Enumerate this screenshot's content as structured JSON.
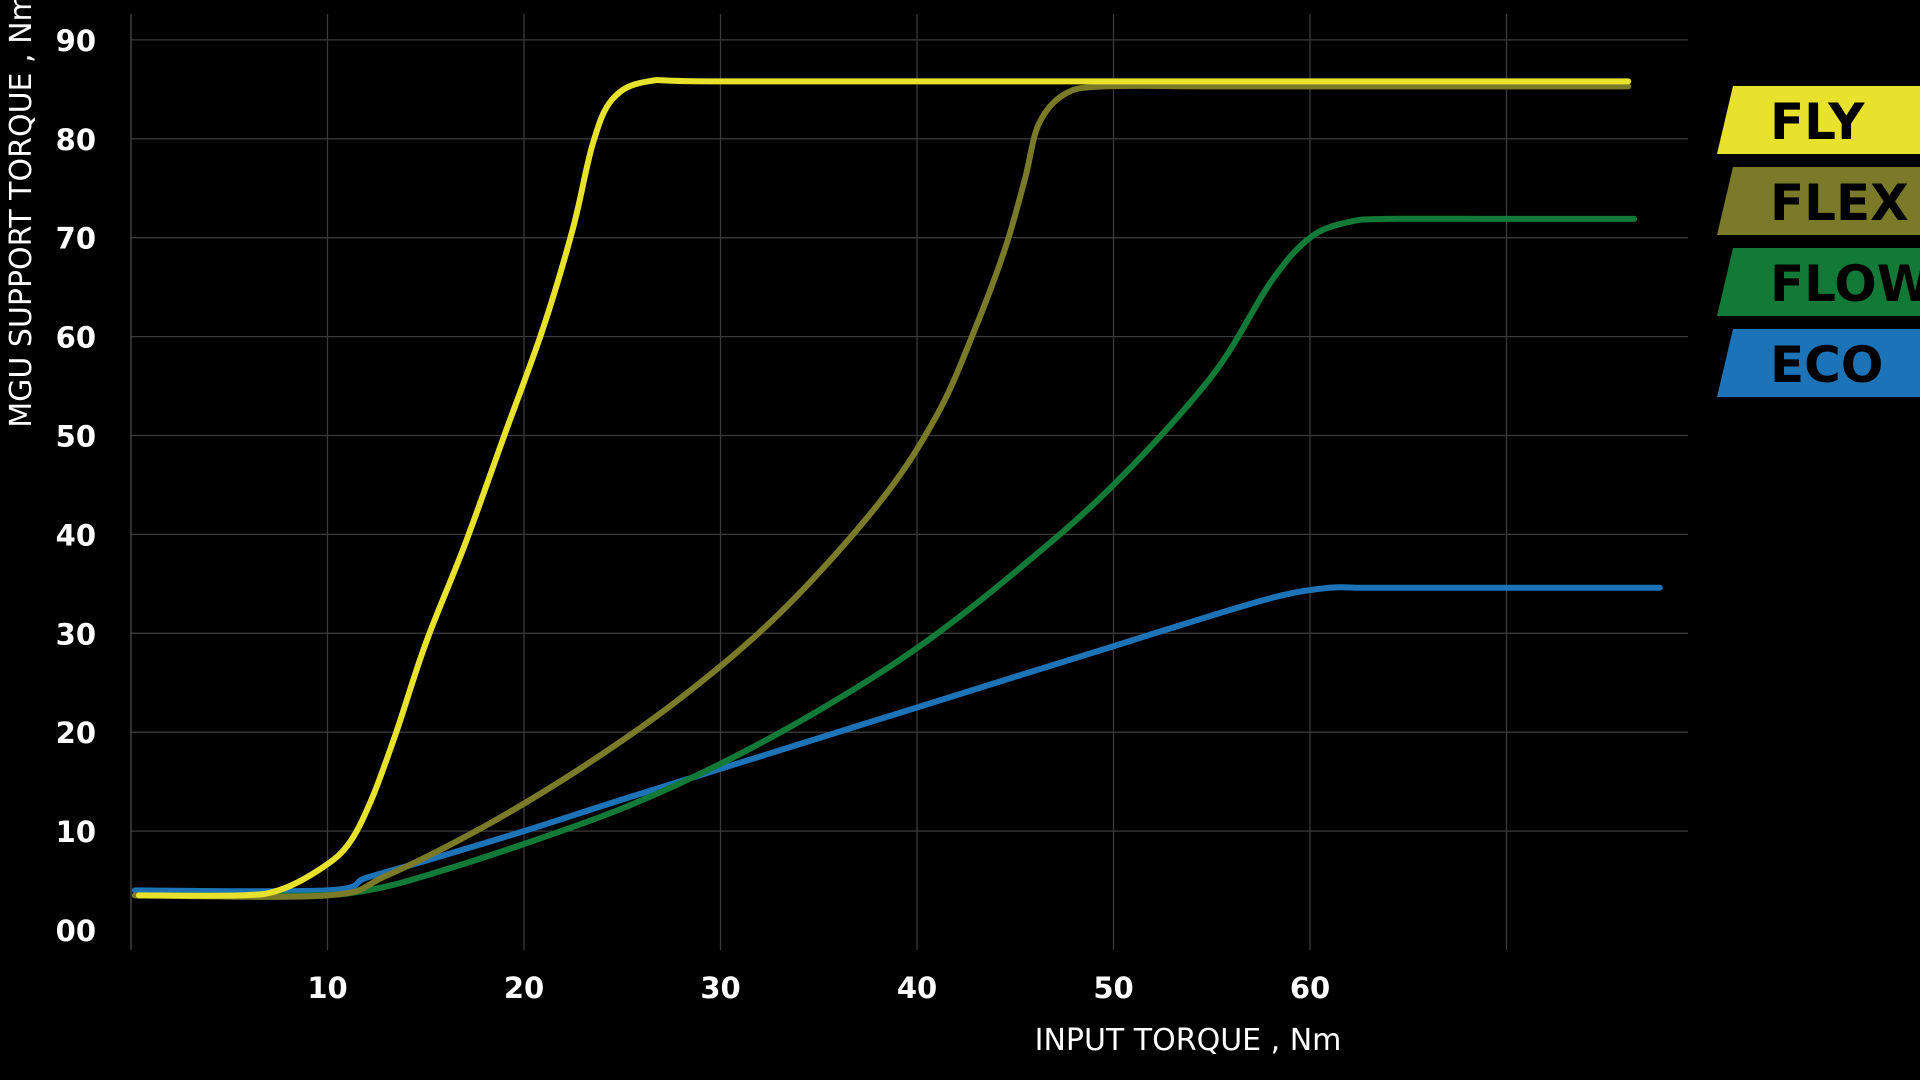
{
  "chart_data": {
    "type": "line",
    "xlabel": "INPUT TORQUE  , Nm",
    "ylabel": "MGU SUPPORT TORQUE  , Nm",
    "xlim": [
      0,
      79
    ],
    "ylim": [
      0,
      91
    ],
    "x_ticks": [
      10,
      20,
      30,
      40,
      50,
      60
    ],
    "x_tick_labels": [
      "10",
      "20",
      "30",
      "40",
      "50",
      "60"
    ],
    "x_grid": [
      10,
      20,
      30,
      40,
      50,
      60,
      70
    ],
    "y_ticks": [
      0,
      10,
      20,
      30,
      40,
      50,
      60,
      70,
      80,
      90
    ],
    "y_tick_labels": [
      "00",
      "10",
      "20",
      "30",
      "40",
      "50",
      "60",
      "70",
      "80",
      "90"
    ],
    "grid": true,
    "legend_position": "right",
    "series": [
      {
        "name": "ECO",
        "color": "#1d73b8",
        "points": [
          [
            0.2,
            4
          ],
          [
            10,
            4
          ],
          [
            12,
            5.3
          ],
          [
            15,
            7
          ],
          [
            20,
            10
          ],
          [
            25,
            13.2
          ],
          [
            30,
            16.3
          ],
          [
            35,
            19.4
          ],
          [
            40,
            22.5
          ],
          [
            45,
            25.6
          ],
          [
            50,
            28.7
          ],
          [
            55,
            31.8
          ],
          [
            58.5,
            33.8
          ],
          [
            61,
            34.6
          ],
          [
            63,
            34.6
          ],
          [
            70,
            34.6
          ],
          [
            77.8,
            34.6
          ]
        ]
      },
      {
        "name": "FLOW",
        "color": "#117a36",
        "points": [
          [
            0.2,
            3.5
          ],
          [
            9,
            3.5
          ],
          [
            12,
            4
          ],
          [
            15,
            5.5
          ],
          [
            20,
            8.7
          ],
          [
            25,
            12.3
          ],
          [
            30,
            16.8
          ],
          [
            35,
            22.2
          ],
          [
            40,
            28.5
          ],
          [
            45,
            36.2
          ],
          [
            50,
            45
          ],
          [
            55,
            56
          ],
          [
            58,
            65.5
          ],
          [
            60,
            70
          ],
          [
            62,
            71.6
          ],
          [
            64,
            71.9
          ],
          [
            70,
            71.9
          ],
          [
            76.5,
            71.9
          ]
        ]
      },
      {
        "name": "FLEX",
        "color": "#7a7a28",
        "points": [
          [
            0.2,
            3.5
          ],
          [
            10,
            3.5
          ],
          [
            13,
            5.5
          ],
          [
            18,
            10.5
          ],
          [
            23,
            16.5
          ],
          [
            28,
            23.5
          ],
          [
            33,
            32
          ],
          [
            38,
            43
          ],
          [
            41,
            52
          ],
          [
            43,
            61
          ],
          [
            44.5,
            69
          ],
          [
            45.5,
            76
          ],
          [
            46.2,
            81.5
          ],
          [
            47.5,
            84.5
          ],
          [
            49.5,
            85.3
          ],
          [
            55,
            85.3
          ],
          [
            65,
            85.3
          ],
          [
            76.2,
            85.3
          ]
        ]
      },
      {
        "name": "FLY",
        "color": "#e9e22c",
        "points": [
          [
            0.4,
            3.5
          ],
          [
            5.5,
            3.5
          ],
          [
            7.5,
            4
          ],
          [
            9.5,
            6
          ],
          [
            11,
            8.5
          ],
          [
            12.2,
            13
          ],
          [
            13.5,
            20
          ],
          [
            15,
            29
          ],
          [
            17,
            39
          ],
          [
            19,
            50
          ],
          [
            21,
            61
          ],
          [
            22.5,
            71
          ],
          [
            23.5,
            79.5
          ],
          [
            24.5,
            84
          ],
          [
            26.3,
            85.8
          ],
          [
            30,
            85.8
          ],
          [
            50,
            85.8
          ],
          [
            76.2,
            85.8
          ]
        ]
      }
    ]
  },
  "legend": [
    {
      "label": "FLY",
      "color": "#e9e22c"
    },
    {
      "label": "FLEX",
      "color": "#7a7a28"
    },
    {
      "label": "FLOW",
      "color": "#117a36"
    },
    {
      "label": "ECO",
      "color": "#1d73b8"
    }
  ]
}
